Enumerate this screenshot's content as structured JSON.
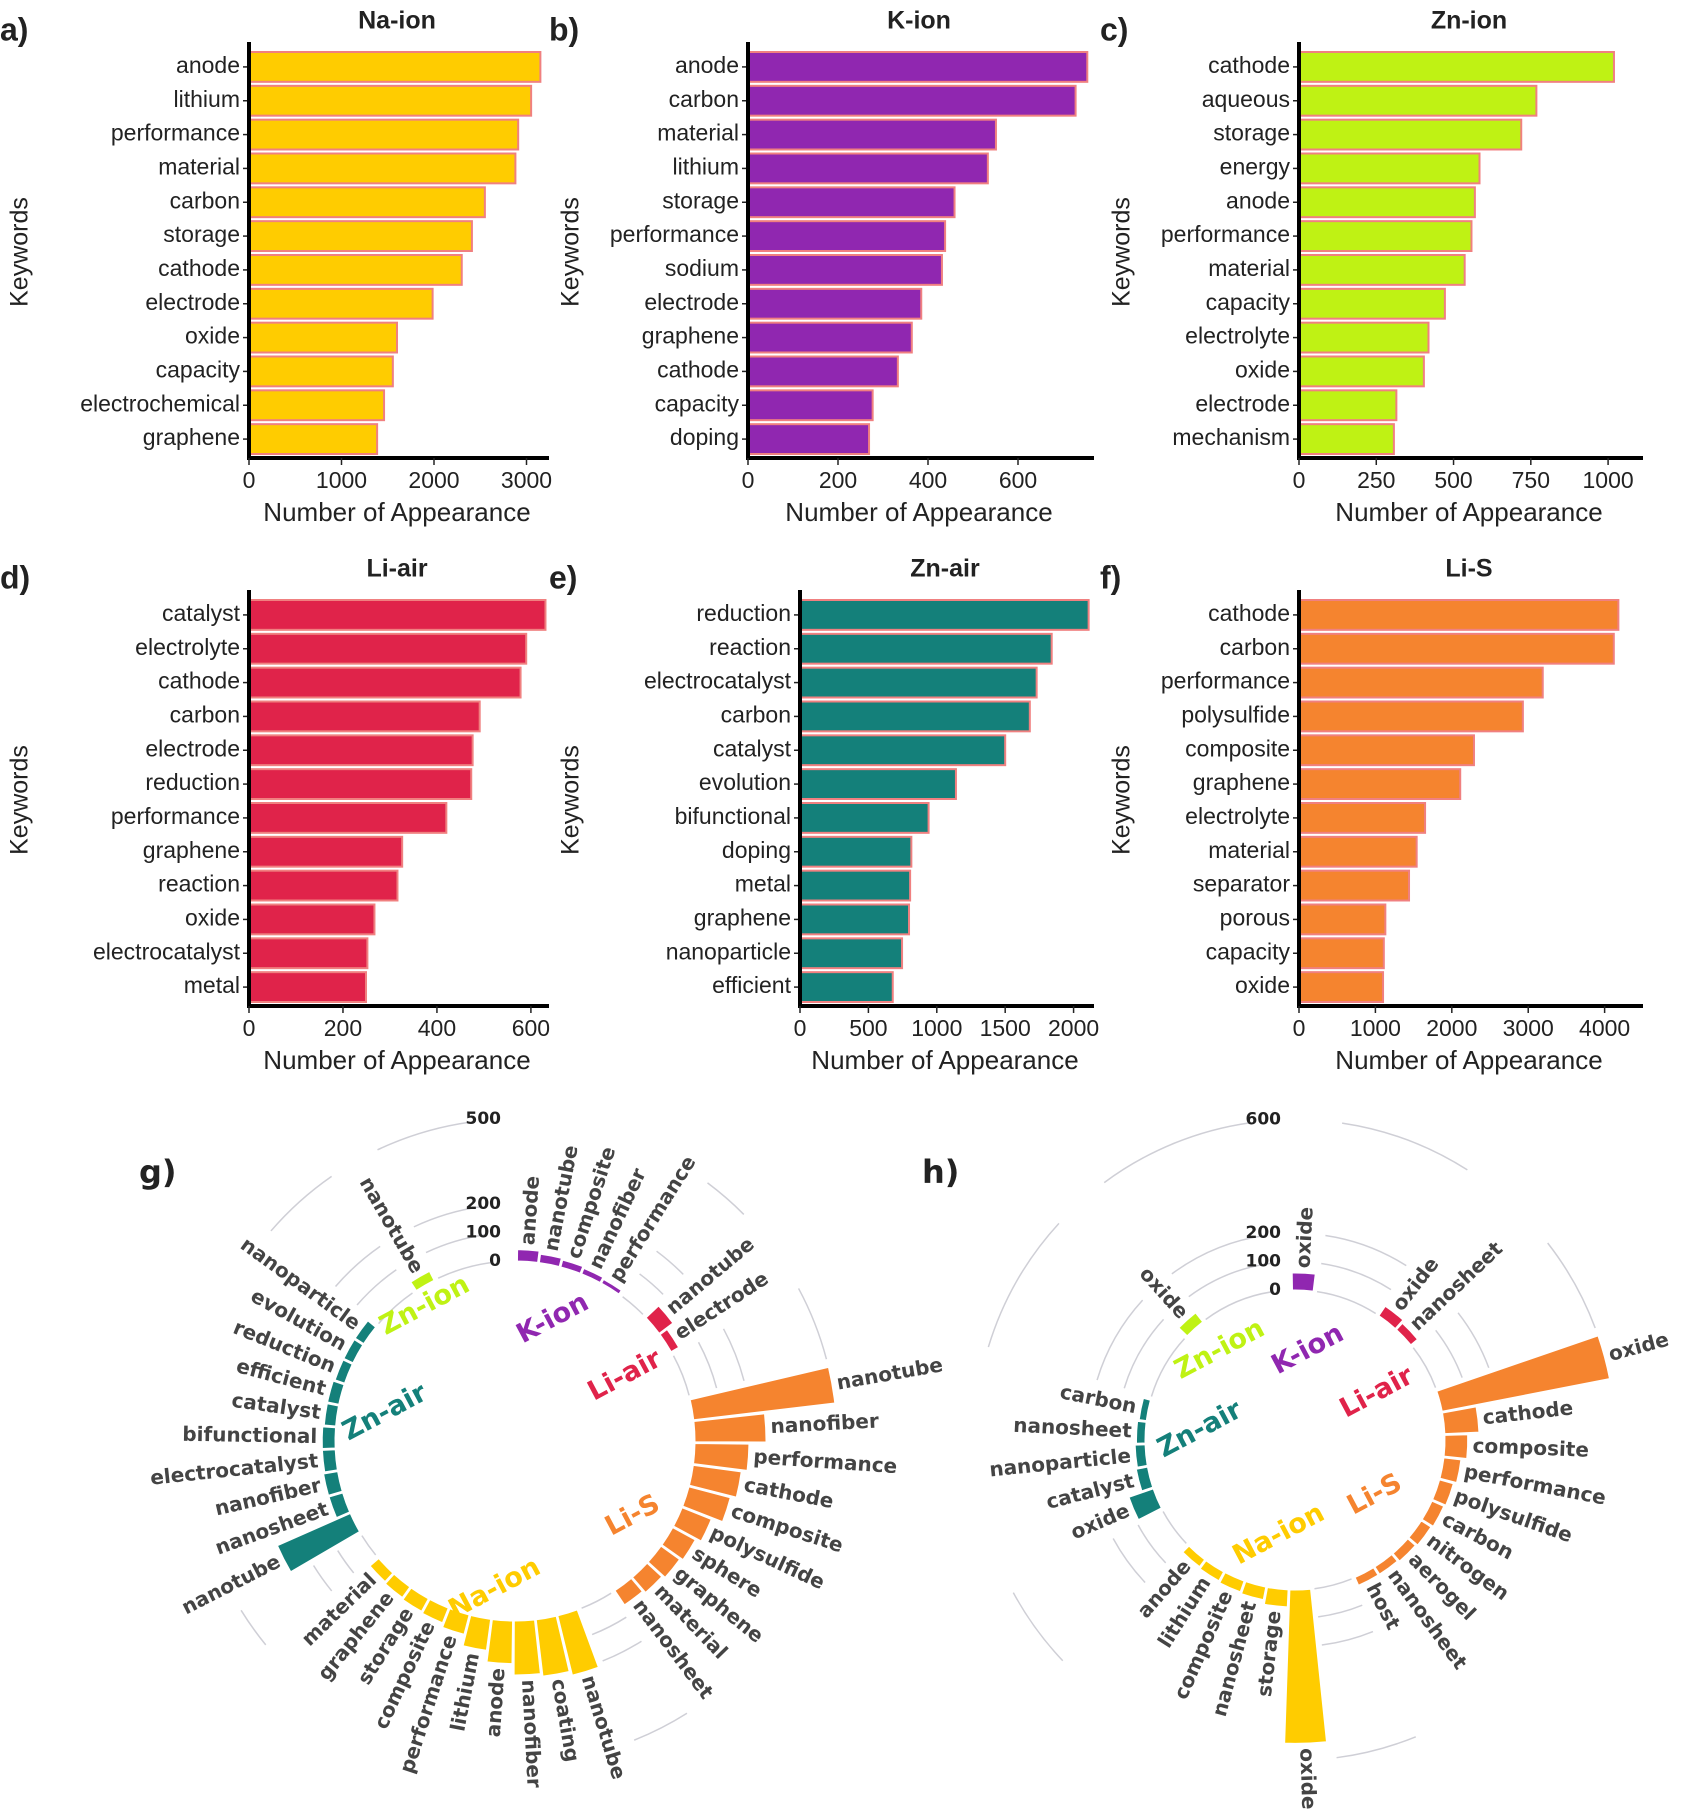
{
  "chart_data": [
    {
      "panel": "a)",
      "type": "bar",
      "orientation": "horizontal",
      "title": "Na-ion",
      "xlabel": "Number of Appearance",
      "ylabel": "Keywords",
      "xlim": [
        0,
        3200
      ],
      "xticks": [
        0,
        1000,
        2000,
        3000
      ],
      "color": "#FFCC00",
      "edge_color": "#F08080",
      "categories": [
        "anode",
        "lithium",
        "performance",
        "material",
        "carbon",
        "storage",
        "cathode",
        "electrode",
        "oxide",
        "capacity",
        "electrochemical",
        "graphene"
      ],
      "values": [
        3150,
        3050,
        2910,
        2880,
        2550,
        2410,
        2300,
        1985,
        1600,
        1555,
        1460,
        1385
      ]
    },
    {
      "panel": "b)",
      "type": "bar",
      "orientation": "horizontal",
      "title": "K-ion",
      "xlabel": "Number of Appearance",
      "ylabel": "Keywords",
      "xlim": [
        0,
        760
      ],
      "xticks": [
        0,
        200,
        400,
        600
      ],
      "color": "#9027B0",
      "edge_color": "#F08080",
      "categories": [
        "anode",
        "carbon",
        "material",
        "lithium",
        "storage",
        "performance",
        "sodium",
        "electrode",
        "graphene",
        "cathode",
        "capacity",
        "doping"
      ],
      "values": [
        754,
        728,
        551,
        533,
        459,
        438,
        431,
        385,
        364,
        333,
        277,
        269
      ]
    },
    {
      "panel": "c)",
      "type": "bar",
      "orientation": "horizontal",
      "title": "Zn-ion",
      "xlabel": "Number of Appearance",
      "ylabel": "Keywords",
      "xlim": [
        0,
        1100
      ],
      "xticks": [
        0,
        250,
        500,
        750,
        1000
      ],
      "color": "#BFF214",
      "edge_color": "#F08080",
      "categories": [
        "cathode",
        "aqueous",
        "storage",
        "energy",
        "anode",
        "performance",
        "material",
        "capacity",
        "electrolyte",
        "oxide",
        "electrode",
        "mechanism"
      ],
      "values": [
        1019,
        768,
        719,
        584,
        569,
        558,
        536,
        472,
        419,
        404,
        315,
        307
      ]
    },
    {
      "panel": "d)",
      "type": "bar",
      "orientation": "horizontal",
      "title": "Li-air",
      "xlabel": "Number of Appearance",
      "ylabel": "Keywords",
      "xlim": [
        0,
        630
      ],
      "xticks": [
        0,
        200,
        400,
        600
      ],
      "color": "#E0234A",
      "edge_color": "#F08080",
      "categories": [
        "catalyst",
        "electrolyte",
        "cathode",
        "carbon",
        "electrode",
        "reduction",
        "performance",
        "graphene",
        "reaction",
        "oxide",
        "electrocatalyst",
        "metal"
      ],
      "values": [
        631,
        590,
        578,
        491,
        476,
        473,
        420,
        326,
        316,
        267,
        252,
        249
      ]
    },
    {
      "panel": "e)",
      "type": "bar",
      "orientation": "horizontal",
      "title": "Zn-air",
      "xlabel": "Number of Appearance",
      "ylabel": "Keywords",
      "xlim": [
        0,
        2120
      ],
      "xticks": [
        0,
        500,
        1000,
        1500,
        2000
      ],
      "color": "#14807A",
      "edge_color": "#F08080",
      "categories": [
        "reduction",
        "reaction",
        "electrocatalyst",
        "carbon",
        "catalyst",
        "evolution",
        "bifunctional",
        "doping",
        "metal",
        "graphene",
        "nanoparticle",
        "efficient"
      ],
      "values": [
        2110,
        1840,
        1730,
        1680,
        1500,
        1140,
        940,
        814,
        805,
        797,
        746,
        678
      ]
    },
    {
      "panel": "f)",
      "type": "bar",
      "orientation": "horizontal",
      "title": "Li-S",
      "xlabel": "Number of Appearance",
      "ylabel": "Keywords",
      "xlim": [
        0,
        4450
      ],
      "xticks": [
        0,
        1000,
        2000,
        3000,
        4000
      ],
      "color": "#F5842F",
      "edge_color": "#F08080",
      "categories": [
        "cathode",
        "carbon",
        "performance",
        "polysulfide",
        "composite",
        "graphene",
        "electrolyte",
        "material",
        "separator",
        "porous",
        "capacity",
        "oxide"
      ],
      "values": [
        4180,
        4120,
        3190,
        2930,
        2290,
        2110,
        1650,
        1540,
        1440,
        1130,
        1110,
        1100
      ]
    },
    {
      "panel": "g)",
      "type": "bar",
      "coordinate": "polar",
      "radial_ticks": [
        0,
        100,
        200,
        500
      ],
      "groups": [
        {
          "name": "K-ion",
          "color": "#9027B0",
          "categories": [
            "anode",
            "nanotube",
            "composite",
            "nanofiber",
            "performance"
          ],
          "values": [
            40,
            30,
            25,
            20,
            15
          ]
        },
        {
          "name": "Li-air",
          "color": "#E0234A",
          "categories": [
            "nanotube",
            "electrode"
          ],
          "values": [
            60,
            30
          ]
        },
        {
          "name": "Li-S",
          "color": "#F5842F",
          "categories": [
            "nanotube",
            "nanofiber",
            "performance",
            "cathode",
            "composite",
            "polysulfide",
            "sphere",
            "graphene",
            "material",
            "nanosheet"
          ],
          "values": [
            500,
            250,
            190,
            170,
            150,
            110,
            90,
            80,
            70,
            60
          ]
        },
        {
          "name": "Na-ion",
          "color": "#FFCC00",
          "categories": [
            "nanotube",
            "coating",
            "nanofiber",
            "anode",
            "lithium",
            "performance",
            "composite",
            "storage",
            "graphene",
            "material"
          ],
          "values": [
            215,
            200,
            190,
            150,
            110,
            70,
            55,
            50,
            45,
            40
          ]
        },
        {
          "name": "Zn-air",
          "color": "#14807A",
          "categories": [
            "nanotube",
            "nanosheet",
            "nanofiber",
            "electrocatalyst",
            "bifunctional",
            "catalyst",
            "efficient",
            "reduction",
            "evolution",
            "nanoparticle"
          ],
          "values": [
            280,
            50,
            50,
            45,
            45,
            40,
            40,
            35,
            35,
            35
          ]
        },
        {
          "name": "Zn-ion",
          "color": "#BFF214",
          "categories": [
            "nanotube"
          ],
          "values": [
            35
          ]
        }
      ]
    },
    {
      "panel": "h)",
      "type": "bar",
      "coordinate": "polar",
      "radial_ticks": [
        0,
        100,
        200,
        600
      ],
      "groups": [
        {
          "name": "K-ion",
          "color": "#9027B0",
          "categories": [
            "oxide"
          ],
          "values": [
            60
          ]
        },
        {
          "name": "Li-air",
          "color": "#E0234A",
          "categories": [
            "oxide",
            "nanosheet"
          ],
          "values": [
            40,
            30
          ]
        },
        {
          "name": "Li-S",
          "color": "#F5842F",
          "categories": [
            "oxide",
            "cathode",
            "composite",
            "performance",
            "polysulfide",
            "carbon",
            "nitrogen",
            "aerogel",
            "nanosheet",
            "host"
          ],
          "values": [
            600,
            120,
            80,
            60,
            50,
            45,
            40,
            35,
            30,
            30
          ]
        },
        {
          "name": "Na-ion",
          "color": "#FFCC00",
          "categories": [
            "oxide",
            "storage",
            "nanosheet",
            "composite",
            "lithium",
            "anode"
          ],
          "values": [
            540,
            60,
            45,
            40,
            35,
            30
          ]
        },
        {
          "name": "Zn-air",
          "color": "#14807A",
          "categories": [
            "oxide",
            "catalyst",
            "nanoparticle",
            "nanosheet",
            "carbon"
          ],
          "values": [
            90,
            40,
            35,
            30,
            25
          ]
        },
        {
          "name": "Zn-ion",
          "color": "#BFF214",
          "categories": [
            "oxide"
          ],
          "values": [
            40
          ]
        }
      ]
    }
  ]
}
